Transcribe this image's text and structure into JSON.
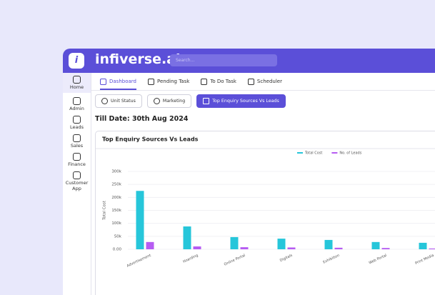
{
  "app": {
    "brand": "infiverse.ai",
    "search_placeholder": "Search...",
    "sidebar": [
      "Home",
      "Admin",
      "Leads",
      "Sales",
      "Finance",
      "Customer App"
    ],
    "tabs": [
      "Dashboard",
      "Pending Task",
      "To Do Task",
      "Scheduler"
    ],
    "filters": [
      "Unit Status",
      "Marketing",
      "Top Enquiry Sources Vs Leads"
    ],
    "date_label": "Till Date: 30th Aug 2024"
  },
  "chart_data": {
    "type": "bar",
    "title": "Top Enquiry Sources Vs Leads",
    "y_label": "Total Cost",
    "categories": [
      "Advertisement",
      "Hoarding",
      "Online Portal",
      "Digitals",
      "Exhibition",
      "Web Portal",
      "Print Media"
    ],
    "series": [
      {
        "name": "Total Cost",
        "color": "#26c6da",
        "values": [
          225000,
          88000,
          47000,
          41000,
          36000,
          28000,
          25000
        ]
      },
      {
        "name": "No. of Leads",
        "color": "#b65cf2",
        "values": [
          28000,
          11000,
          8000,
          7000,
          6000,
          5000,
          3000
        ]
      }
    ],
    "ylim": [
      0,
      300000
    ],
    "yticks": [
      {
        "value": 0,
        "label": "0.00"
      },
      {
        "value": 50000,
        "label": "50k"
      },
      {
        "value": 100000,
        "label": "100k"
      },
      {
        "value": 150000,
        "label": "150k"
      },
      {
        "value": 200000,
        "label": "200k"
      },
      {
        "value": 250000,
        "label": "250k"
      },
      {
        "value": 300000,
        "label": "300k"
      }
    ],
    "grid": true
  }
}
